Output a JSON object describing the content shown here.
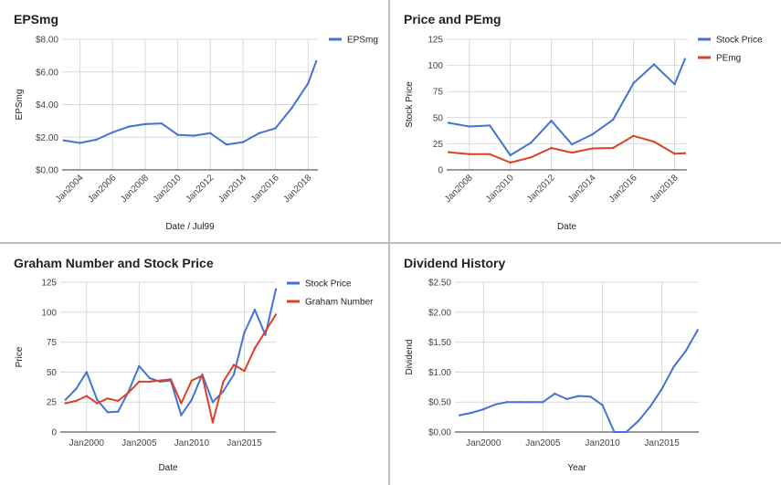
{
  "chart_data": [
    {
      "type": "line",
      "title": "EPSmg",
      "xlabel": "Date / Jul99",
      "ylabel": "EPSmg",
      "x_type": "date",
      "x_ticks": [
        "Jan2004",
        "Jan2006",
        "Jan2008",
        "Jan2010",
        "Jan2012",
        "Jan2014",
        "Jan2016",
        "Jan2018"
      ],
      "y_ticks": [
        "$0.00",
        "$2.00",
        "$4.00",
        "$6.00",
        "$8.00"
      ],
      "ylim": [
        0,
        8
      ],
      "legend_position": "right",
      "grid": true,
      "series": [
        {
          "name": "EPSmg",
          "color": "#4472d6",
          "x": [
            "2003-01",
            "2004-01",
            "2005-01",
            "2006-01",
            "2007-01",
            "2008-01",
            "2009-01",
            "2010-01",
            "2011-01",
            "2012-01",
            "2013-01",
            "2014-01",
            "2015-01",
            "2016-01",
            "2017-01",
            "2018-01",
            "2018-07"
          ],
          "y": [
            1.8,
            1.65,
            1.85,
            2.3,
            2.65,
            2.8,
            2.85,
            2.15,
            2.1,
            2.25,
            1.55,
            1.7,
            2.25,
            2.55,
            3.8,
            5.3,
            6.65
          ]
        }
      ]
    },
    {
      "type": "line",
      "title": "Price and PEmg",
      "xlabel": "Date",
      "ylabel": "Stock Price",
      "x_type": "date",
      "x_ticks": [
        "Jan2008",
        "Jan2010",
        "Jan2012",
        "Jan2014",
        "Jan2016",
        "Jan2018"
      ],
      "y_ticks": [
        "0",
        "25",
        "50",
        "75",
        "100",
        "125"
      ],
      "ylim": [
        0,
        125
      ],
      "legend_position": "right",
      "grid": true,
      "series": [
        {
          "name": "Stock Price",
          "color": "#4472d6",
          "x": [
            "2007-01",
            "2008-01",
            "2009-01",
            "2010-01",
            "2011-01",
            "2012-01",
            "2013-01",
            "2014-01",
            "2015-01",
            "2016-01",
            "2017-01",
            "2018-01",
            "2018-07"
          ],
          "y": [
            45,
            41.5,
            42.5,
            14,
            26,
            47,
            24.5,
            34,
            48,
            83,
            101,
            82,
            106
          ]
        },
        {
          "name": "PEmg",
          "color": "#dc4128",
          "x": [
            "2007-01",
            "2008-01",
            "2009-01",
            "2010-01",
            "2011-01",
            "2012-01",
            "2013-01",
            "2014-01",
            "2015-01",
            "2016-01",
            "2017-01",
            "2018-01",
            "2018-07"
          ],
          "y": [
            17,
            15,
            15,
            7,
            12,
            21,
            16.5,
            20.5,
            21,
            32.5,
            27,
            15.5,
            16
          ]
        }
      ]
    },
    {
      "type": "line",
      "title": "Graham Number and Stock Price",
      "xlabel": "Date",
      "ylabel": "Price",
      "x_type": "date",
      "x_ticks": [
        "Jan2000",
        "Jan2005",
        "Jan2010",
        "Jan2015"
      ],
      "y_ticks": [
        "0",
        "25",
        "50",
        "75",
        "100",
        "125"
      ],
      "ylim": [
        0,
        125
      ],
      "legend_position": "right",
      "grid": true,
      "series": [
        {
          "name": "Stock Price",
          "color": "#4472d6",
          "x": [
            "1998-01",
            "1999-01",
            "2000-01",
            "2001-01",
            "2002-01",
            "2003-01",
            "2004-01",
            "2005-01",
            "2006-01",
            "2007-01",
            "2008-01",
            "2009-01",
            "2010-01",
            "2011-01",
            "2012-01",
            "2013-01",
            "2014-01",
            "2015-01",
            "2016-01",
            "2017-01",
            "2018-01"
          ],
          "y": [
            27,
            36,
            50,
            27,
            16.5,
            17,
            34,
            55,
            45,
            42,
            43,
            14,
            27,
            48,
            25,
            34,
            48,
            83,
            102,
            81,
            119
          ]
        },
        {
          "name": "Graham Number",
          "color": "#dc4128",
          "x": [
            "1998-01",
            "1999-01",
            "2000-01",
            "2001-01",
            "2002-01",
            "2003-01",
            "2004-01",
            "2005-01",
            "2006-01",
            "2007-01",
            "2008-01",
            "2009-01",
            "2010-01",
            "2011-01",
            "2012-01",
            "2013-01",
            "2014-01",
            "2015-01",
            "2016-01",
            "2017-01",
            "2018-01"
          ],
          "y": [
            24,
            26,
            30,
            24,
            28,
            26,
            33,
            42,
            42,
            43,
            44,
            24,
            43,
            47,
            8,
            42,
            56,
            51,
            70,
            84,
            98
          ]
        }
      ]
    },
    {
      "type": "line",
      "title": "Dividend History",
      "xlabel": "Year",
      "ylabel": "Dividend",
      "x_type": "date",
      "x_ticks": [
        "Jan2000",
        "Jan2005",
        "Jan2010",
        "Jan2015"
      ],
      "y_ticks": [
        "$0.00",
        "$0.50",
        "$1.00",
        "$1.50",
        "$2.00",
        "$2.50"
      ],
      "ylim": [
        0,
        2.5
      ],
      "grid": true,
      "series": [
        {
          "color": "#4472d6",
          "x": [
            "1998-01",
            "1999-01",
            "2000-01",
            "2001-01",
            "2002-01",
            "2003-01",
            "2004-01",
            "2005-01",
            "2006-01",
            "2007-01",
            "2008-01",
            "2009-01",
            "2010-01",
            "2011-01",
            "2012-01",
            "2013-01",
            "2014-01",
            "2015-01",
            "2016-01",
            "2017-01",
            "2018-01"
          ],
          "y": [
            0.28,
            0.32,
            0.38,
            0.46,
            0.5,
            0.5,
            0.5,
            0.5,
            0.64,
            0.55,
            0.6,
            0.59,
            0.45,
            0.0,
            0.0,
            0.18,
            0.42,
            0.72,
            1.09,
            1.35,
            1.7
          ]
        }
      ]
    }
  ]
}
